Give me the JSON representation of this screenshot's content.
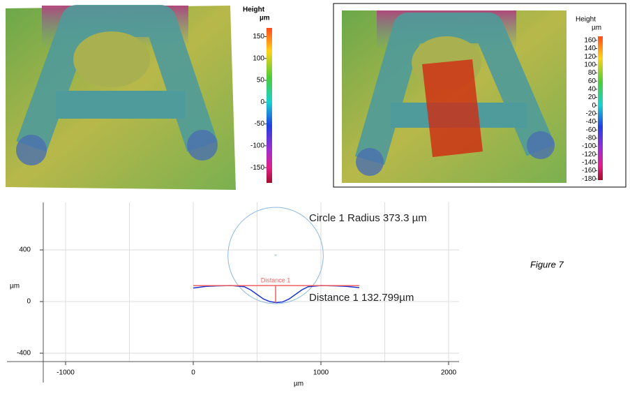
{
  "left_map": {
    "colorbar": {
      "title": "Height",
      "unit": "µm",
      "lim": [
        -185,
        170
      ],
      "ticks": [
        150,
        100,
        50,
        0,
        -50,
        -100,
        -150
      ]
    }
  },
  "right_map": {
    "colorbar": {
      "title": "Height",
      "unit": "µm",
      "lim": [
        -183,
        170
      ],
      "ticks": [
        160,
        140,
        120,
        100,
        80,
        60,
        40,
        20,
        0,
        -20,
        -40,
        -60,
        -80,
        -100,
        -120,
        -140,
        -160,
        -180
      ]
    }
  },
  "chart_data": {
    "type": "line",
    "xlabel": "µm",
    "ylabel": "µm",
    "xlim": [
      -1175,
      2082
    ],
    "ylim": [
      -465,
      768
    ],
    "xticks": [
      -1000,
      0,
      1000,
      2000
    ],
    "xminor": [
      -500,
      500,
      1500
    ],
    "yticks": [
      -400,
      0,
      400
    ],
    "grid": true,
    "x": [
      0,
      100,
      200,
      300,
      400,
      450,
      500,
      550,
      600,
      650,
      700,
      750,
      800,
      850,
      900,
      1000,
      1100,
      1200,
      1300
    ],
    "series": [
      {
        "color": "#1a33cc",
        "values": [
          105,
          118,
          122,
          124,
          115,
          90,
          55,
          20,
          0,
          -8,
          -3,
          20,
          55,
          90,
          115,
          124,
          122,
          118,
          108
        ]
      }
    ],
    "circle": {
      "center": [
        645,
        357
      ],
      "radius": 373.3,
      "color": "#8ab8e0",
      "label": "Circle 1 Radius 373.3 µm"
    },
    "distance": {
      "name": "Distance 1",
      "span": [
        0,
        1300
      ],
      "x": 645,
      "top": 124,
      "value": 132.799,
      "color": "#f06060",
      "label": "Distance 1 132.799µm"
    },
    "caption": "Figure 7"
  }
}
